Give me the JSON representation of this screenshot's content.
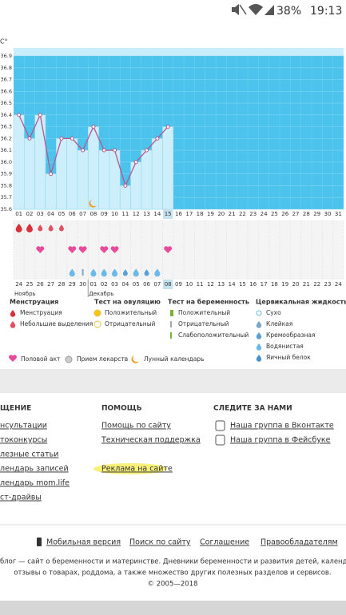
{
  "status_bar": {
    "battery": "38%",
    "time": "19:13"
  },
  "chart_data": {
    "type": "line",
    "y_unit": "C°",
    "categories": [
      "01",
      "02",
      "03",
      "04",
      "05",
      "06",
      "07",
      "08",
      "09",
      "10",
      "11",
      "12",
      "13",
      "14",
      "15",
      "16",
      "17",
      "18",
      "19",
      "20",
      "21",
      "22",
      "23",
      "24",
      "25",
      "26",
      "27",
      "28",
      "29",
      "30",
      "31"
    ],
    "values": [
      36.4,
      36.2,
      36.4,
      35.9,
      36.2,
      36.2,
      36.1,
      36.3,
      36.1,
      36.1,
      35.8,
      36.0,
      36.1,
      36.2,
      36.3,
      null,
      null,
      null,
      null,
      null,
      null,
      null,
      null,
      null,
      null,
      null,
      null,
      null,
      null,
      null,
      null
    ],
    "color": "#b5588f",
    "fill": "#cdeefb",
    "background": "#4cc3ec",
    "grid": true,
    "ylim": [
      35.6,
      36.9
    ],
    "yticks": [
      35.6,
      35.7,
      35.8,
      35.9,
      {
        "value": 36,
        "label": "36.0"
      },
      36.1,
      36.2,
      36.3,
      36.4,
      36.5,
      36.6,
      36.7,
      36.8,
      36.9
    ],
    "current": 14,
    "dates": [
      "24",
      "25",
      "26",
      "27",
      "28",
      "29",
      "30",
      "01",
      "02",
      "03",
      "04",
      "05",
      "06",
      "07",
      "08",
      "09",
      "10",
      "11",
      "12",
      "13",
      "14",
      "15",
      "16",
      "17",
      "18",
      "19",
      "20",
      "21",
      "22",
      "23",
      "24"
    ],
    "dates_red": [
      true,
      true,
      false,
      false,
      false,
      false,
      false,
      true,
      true,
      false,
      false,
      false,
      false,
      false,
      false,
      true,
      false,
      false,
      false,
      false,
      false,
      true,
      true,
      false,
      false,
      false,
      false,
      false,
      true,
      true,
      false
    ],
    "months": [
      "Ноябрь",
      "Декабрь"
    ],
    "month_starts": [
      0,
      7
    ],
    "symbols": {
      "menstruation": [
        "heavy",
        "heavy",
        "light",
        "light",
        "light",
        null,
        null,
        null,
        null,
        null,
        null,
        null,
        null,
        null,
        null,
        null,
        null,
        null,
        null,
        null,
        null,
        null,
        null,
        null,
        null,
        null,
        null,
        null,
        null,
        null,
        null
      ],
      "intercourse": [
        null,
        null,
        "yes",
        null,
        null,
        "yes",
        "yes",
        null,
        "yes",
        "yes",
        null,
        null,
        null,
        null,
        "yes",
        null,
        null,
        null,
        null,
        null,
        null,
        null,
        null,
        null,
        null,
        null,
        null,
        null,
        null,
        null,
        null
      ],
      "fluid": [
        null,
        null,
        null,
        null,
        null,
        "watery",
        "sticky",
        "watery",
        "watery",
        "watery",
        "creamy",
        "watery",
        "creamy",
        "watery",
        null,
        null,
        null,
        null,
        null,
        null,
        null,
        null,
        null,
        null,
        null,
        null,
        null,
        null,
        null,
        null,
        null
      ],
      "moon": [
        null,
        null,
        null,
        null,
        null,
        null,
        null,
        "yes",
        null,
        null,
        null,
        null,
        null,
        null,
        null,
        null,
        null,
        null,
        null,
        null,
        null,
        null,
        null,
        null,
        null,
        null,
        null,
        null,
        null,
        null,
        null
      ]
    }
  },
  "legend": {
    "groups": [
      {
        "title": "Менструация",
        "items": [
          "Менструация",
          "Небольшие выделения"
        ]
      },
      {
        "title": "Тест на овуляцию",
        "items": [
          "Положительный",
          "Отрицательный"
        ]
      },
      {
        "title": "Тест на беременность",
        "items": [
          "Положительный",
          "Отрицательный",
          "Слабоположительный"
        ]
      },
      {
        "title": "Цервикальная жидкость",
        "items": [
          "Сухо",
          "Клейкая",
          "Кремообразная",
          "Водянистая",
          "Яичный белок"
        ]
      }
    ],
    "bottom": [
      "Половой акт",
      "Прием лекарств",
      "Лунный календарь"
    ]
  },
  "footer": {
    "columns": [
      {
        "title": "ЩЕНИЕ",
        "links": [
          "нсультации",
          "токонкурсы",
          "лезные статьи",
          "лендарь записей",
          "лендарь mom.life",
          "ст-драйвы"
        ]
      },
      {
        "title": "ПОМОЩЬ",
        "links": [
          "Помощь по сайту",
          "Техническая поддержка",
          "Реклама на сайте"
        ]
      },
      {
        "title": "СЛЕДИТЕ ЗА НАМИ",
        "links": [
          "Наша группа в Вконтакте",
          "Наша группа в Фейсбуке"
        ]
      }
    ],
    "bottom_links": [
      "Мобильная версия",
      "Поиск по сайту",
      "Соглашение",
      "Правообладателям"
    ],
    "about": [
      "блог — сайт о беременности и материнстве. Дневники беременности и развития детей, календарь б",
      "отзывы о товарах, роддома, а также множество других полезных разделов и сервисов.",
      "© 2005—2018"
    ]
  }
}
